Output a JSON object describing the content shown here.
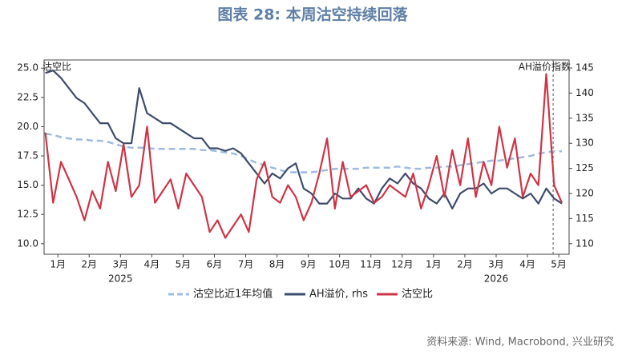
{
  "chart_data": {
    "type": "line",
    "title": "图表 28: 本周沽空持续回落",
    "y_label": "沽空比",
    "y2_label": "AH溢价指数",
    "source": "资料来源: Wind, Macrobond, 兴业研究",
    "year_labels": [
      {
        "value": 2.5,
        "label": "2025"
      },
      {
        "value": 14.5,
        "label": "2026"
      }
    ],
    "x": [
      0.1,
      0.35,
      0.6,
      0.85,
      1.1,
      1.35,
      1.6,
      1.85,
      2.1,
      2.35,
      2.6,
      2.85,
      3.1,
      3.35,
      3.6,
      3.85,
      4.1,
      4.35,
      4.6,
      4.85,
      5.1,
      5.35,
      5.6,
      5.85,
      6.1,
      6.35,
      6.6,
      6.85,
      7.1,
      7.35,
      7.6,
      7.85,
      8.1,
      8.35,
      8.6,
      8.85,
      9.1,
      9.35,
      9.6,
      9.85,
      10.1,
      10.35,
      10.6,
      10.85,
      11.1,
      11.35,
      11.6,
      11.85,
      12.1,
      12.35,
      12.6,
      12.85,
      13.1,
      13.35,
      13.6,
      13.85,
      14.1,
      14.35,
      14.6,
      14.85,
      15.1,
      15.35,
      15.6,
      15.85,
      16.1,
      16.35,
      16.6
    ],
    "xlim": [
      0.06,
      16.83
    ],
    "xticks": [
      {
        "value": 0.5,
        "label": "1月"
      },
      {
        "value": 1.5,
        "label": "2月"
      },
      {
        "value": 2.5,
        "label": "3月"
      },
      {
        "value": 3.5,
        "label": "4月"
      },
      {
        "value": 4.5,
        "label": "5月"
      },
      {
        "value": 5.5,
        "label": "6月"
      },
      {
        "value": 6.5,
        "label": "7月"
      },
      {
        "value": 7.5,
        "label": "8月"
      },
      {
        "value": 8.5,
        "label": "9月"
      },
      {
        "value": 9.5,
        "label": "10月"
      },
      {
        "value": 10.5,
        "label": "11月"
      },
      {
        "value": 11.5,
        "label": "12月"
      },
      {
        "value": 12.5,
        "label": "1月"
      },
      {
        "value": 13.5,
        "label": "2月"
      },
      {
        "value": 14.5,
        "label": "3月"
      },
      {
        "value": 15.5,
        "label": "4月"
      },
      {
        "value": 16.5,
        "label": "5月"
      }
    ],
    "vline": 16.32,
    "ylim": [
      9.1,
      25.7
    ],
    "yticks": [
      {
        "value": 10,
        "label": "10.0"
      },
      12.5,
      {
        "value": 15,
        "label": "15.0"
      },
      17.5,
      {
        "value": 20,
        "label": "20.0"
      },
      22.5,
      {
        "value": 25,
        "label": "25.0"
      }
    ],
    "y2lim": [
      107.9,
      146.6
    ],
    "y2ticks": [
      110,
      115,
      120,
      125,
      130,
      135,
      140,
      145
    ],
    "series": [
      {
        "name": "沽空比近1年均值",
        "color": "#9dbcde",
        "dashed": true,
        "values": [
          19.4,
          19.3,
          19.1,
          19.0,
          18.9,
          18.9,
          18.8,
          18.8,
          18.7,
          18.5,
          18.3,
          18.2,
          18.2,
          18.2,
          18.1,
          18.1,
          18.1,
          18.1,
          18.1,
          18.1,
          18.0,
          18.0,
          17.9,
          17.8,
          17.7,
          17.5,
          17.2,
          16.9,
          16.7,
          16.5,
          16.3,
          16.1,
          16.1,
          16.1,
          16.1,
          16.2,
          16.3,
          16.4,
          16.4,
          16.4,
          16.4,
          16.5,
          16.5,
          16.5,
          16.5,
          16.6,
          16.5,
          16.4,
          16.4,
          16.5,
          16.5,
          16.6,
          16.6,
          16.7,
          16.8,
          16.9,
          17.0,
          17.1,
          17.1,
          17.2,
          17.3,
          17.4,
          17.5,
          17.7,
          17.8,
          17.9,
          17.9
        ]
      },
      {
        "name": "AH溢价, rhs",
        "color": "#3e4c6c",
        "axis": "y2",
        "values": [
          144,
          144.5,
          143,
          141,
          139,
          138,
          136,
          134,
          134,
          131,
          130,
          130,
          141,
          136,
          135,
          134,
          134,
          133,
          132,
          131,
          131,
          129,
          129,
          128.5,
          129,
          128,
          126,
          124,
          122,
          124,
          123,
          125,
          126,
          121,
          120,
          118,
          118,
          120,
          119,
          119,
          121,
          119,
          118,
          121,
          123,
          122,
          124,
          122,
          121,
          119,
          118,
          120,
          117,
          120,
          121,
          121,
          122,
          120,
          121,
          121,
          120,
          119,
          120,
          118,
          121,
          119,
          118
        ]
      },
      {
        "name": "沽空比",
        "color": "#cf3446",
        "values": [
          19.5,
          13.5,
          17,
          15.5,
          14,
          12,
          14.5,
          13,
          17,
          14.5,
          18.5,
          14,
          15,
          20,
          13.5,
          14.5,
          15.5,
          13,
          16,
          15,
          14,
          11,
          12,
          10.5,
          11.5,
          12.5,
          11,
          15.5,
          17,
          14,
          13.5,
          15,
          14,
          12,
          13.5,
          16,
          19,
          13,
          17,
          14,
          14.5,
          15,
          13.5,
          14,
          15,
          14.5,
          14,
          16,
          13,
          15,
          17.5,
          14,
          18,
          15,
          19,
          14,
          17,
          15,
          20,
          16.5,
          19,
          14,
          16,
          15,
          24.5,
          15,
          13.5
        ]
      }
    ]
  }
}
